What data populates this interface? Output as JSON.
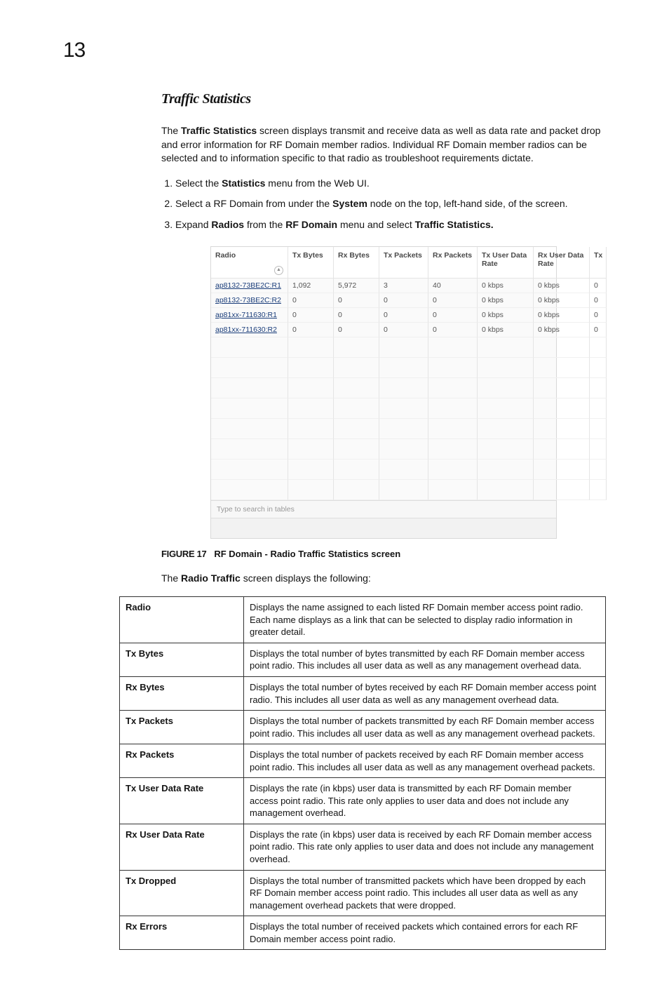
{
  "page": {
    "chapter_number": "13",
    "section_title": "Traffic Statistics",
    "intro_prefix": "The ",
    "intro_bold": "Traffic Statistics",
    "intro_rest": " screen displays transmit and receive data as well as data rate and packet drop and error information for RF Domain member radios. Individual RF Domain member radios can be selected and to information specific to that radio as troubleshoot requirements dictate."
  },
  "steps": {
    "s1a": "Select the ",
    "s1b": "Statistics",
    "s1c": " menu from the Web UI.",
    "s2a": "Select a RF Domain from under the ",
    "s2b": "System",
    "s2c": " node on the top, left-hand side, of the screen.",
    "s3a": "Expand ",
    "s3b": "Radios",
    "s3c": " from the ",
    "s3d": "RF Domain",
    "s3e": " menu and select ",
    "s3f": "Traffic Statistics."
  },
  "grid": {
    "columns": [
      "Radio",
      "Tx Bytes",
      "Rx Bytes",
      "Tx Packets",
      "Rx Packets",
      "Tx User Data Rate",
      "Rx User Data Rate",
      "Tx"
    ],
    "sort_glyph": "▲",
    "rows": [
      {
        "radio": "ap8132-73BE2C:R1",
        "tx_bytes": "1,092",
        "rx_bytes": "5,972",
        "tx_pk": "3",
        "rx_pk": "40",
        "tx_udr": "0 kbps",
        "rx_udr": "0 kbps",
        "tx": "0"
      },
      {
        "radio": "ap8132-73BE2C:R2",
        "tx_bytes": "0",
        "rx_bytes": "0",
        "tx_pk": "0",
        "rx_pk": "0",
        "tx_udr": "0 kbps",
        "rx_udr": "0 kbps",
        "tx": "0"
      },
      {
        "radio": "ap81xx-711630:R1",
        "tx_bytes": "0",
        "rx_bytes": "0",
        "tx_pk": "0",
        "rx_pk": "0",
        "tx_udr": "0 kbps",
        "rx_udr": "0 kbps",
        "tx": "0"
      },
      {
        "radio": "ap81xx-711630:R2",
        "tx_bytes": "0",
        "rx_bytes": "0",
        "tx_pk": "0",
        "rx_pk": "0",
        "tx_udr": "0 kbps",
        "rx_udr": "0 kbps",
        "tx": "0"
      }
    ],
    "empty_row_count": 8,
    "search_placeholder": "Type to search in tables"
  },
  "figure": {
    "label": "FIGURE 17",
    "caption": "RF Domain - Radio Traffic Statistics screen",
    "lead_a": "The ",
    "lead_b": "Radio Traffic",
    "lead_c": " screen displays the following:"
  },
  "defs": [
    {
      "term": "Radio",
      "desc": "Displays the name assigned to each listed RF Domain member access point radio. Each name displays as a link that can be selected to display radio information in greater detail."
    },
    {
      "term": "Tx Bytes",
      "desc": "Displays the total number of bytes transmitted by each RF Domain member access point radio. This includes all user data as well as any management overhead data."
    },
    {
      "term": "Rx Bytes",
      "desc": "Displays the total number of bytes received by each RF Domain member access point radio. This includes all user data as well as any management overhead data."
    },
    {
      "term": "Tx Packets",
      "desc": "Displays the total number of packets transmitted by each RF Domain member access point radio. This includes all user data as well as any management overhead packets."
    },
    {
      "term": "Rx Packets",
      "desc": "Displays the total number of packets received by each RF Domain member access point radio. This includes all user data as well as any management overhead packets."
    },
    {
      "term": "Tx User Data Rate",
      "desc": "Displays the rate (in kbps) user data is transmitted by each RF Domain member access point radio. This rate only applies to user data and does not include any management overhead."
    },
    {
      "term": "Rx User Data Rate",
      "desc": "Displays the rate (in kbps) user data is received by each RF Domain member access point radio. This rate only applies to user data and does not include any management overhead."
    },
    {
      "term": "Tx Dropped",
      "desc": "Displays the total number of transmitted packets which have been dropped by each RF Domain member access point radio. This includes all user data as well as any management overhead packets that were dropped."
    },
    {
      "term": "Rx Errors",
      "desc": "Displays the total number of received packets which contained errors for each RF Domain member access point radio."
    }
  ]
}
